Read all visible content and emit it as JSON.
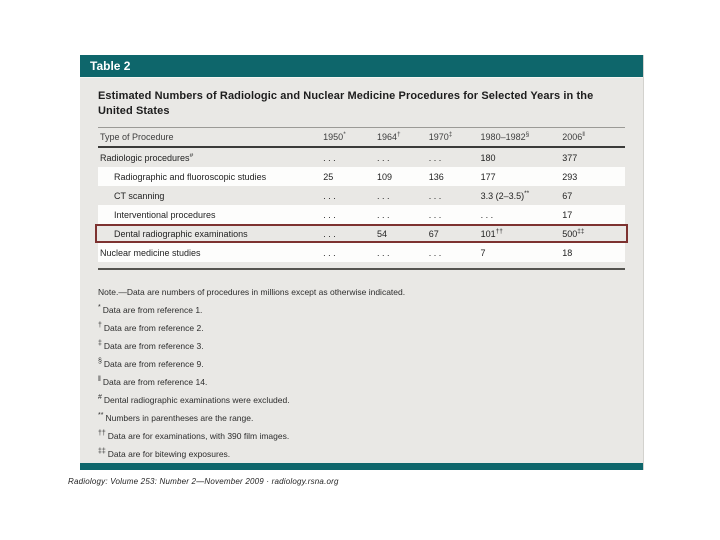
{
  "banner": {
    "label": "Table 2"
  },
  "title": "Estimated Numbers of Radiologic and Nuclear Medicine Procedures for Selected Years in the United States",
  "table": {
    "header": {
      "procedure": "Type of Procedure",
      "years": [
        {
          "label": "1950",
          "sup": "*"
        },
        {
          "label": "1964",
          "sup": "†"
        },
        {
          "label": "1970",
          "sup": "‡"
        },
        {
          "label": "1980–1982",
          "sup": "§"
        },
        {
          "label": "2006",
          "sup": "‖"
        }
      ]
    },
    "rows": [
      {
        "name": "Radiologic procedures",
        "sup": "#",
        "cells": [
          {
            "v": ". . .",
            "s": ""
          },
          {
            "v": ". . .",
            "s": ""
          },
          {
            "v": ". . .",
            "s": ""
          },
          {
            "v": "180",
            "s": ""
          },
          {
            "v": "377",
            "s": ""
          }
        ]
      },
      {
        "name": "Radiographic and fluoroscopic studies",
        "sup": "",
        "cells": [
          {
            "v": "25",
            "s": ""
          },
          {
            "v": "109",
            "s": ""
          },
          {
            "v": "136",
            "s": ""
          },
          {
            "v": "177",
            "s": ""
          },
          {
            "v": "293",
            "s": ""
          }
        ]
      },
      {
        "name": "CT scanning",
        "sup": "",
        "cells": [
          {
            "v": ". . .",
            "s": ""
          },
          {
            "v": ". . .",
            "s": ""
          },
          {
            "v": ". . .",
            "s": ""
          },
          {
            "v": "3.3 (2–3.5)",
            "s": "**"
          },
          {
            "v": "67",
            "s": ""
          }
        ]
      },
      {
        "name": "Interventional procedures",
        "sup": "",
        "cells": [
          {
            "v": ". . .",
            "s": ""
          },
          {
            "v": ". . .",
            "s": ""
          },
          {
            "v": ". . .",
            "s": ""
          },
          {
            "v": ". . .",
            "s": ""
          },
          {
            "v": "17",
            "s": ""
          }
        ]
      },
      {
        "name": "Dental radiographic examinations",
        "sup": "",
        "cells": [
          {
            "v": ". . .",
            "s": ""
          },
          {
            "v": "54",
            "s": ""
          },
          {
            "v": "67",
            "s": ""
          },
          {
            "v": "101",
            "s": "††"
          },
          {
            "v": "500",
            "s": "‡‡"
          }
        ]
      },
      {
        "name": "Nuclear medicine studies",
        "sup": "",
        "cells": [
          {
            "v": ". . .",
            "s": ""
          },
          {
            "v": ". . .",
            "s": ""
          },
          {
            "v": ". . .",
            "s": ""
          },
          {
            "v": "7",
            "s": ""
          },
          {
            "v": "18",
            "s": ""
          }
        ]
      }
    ]
  },
  "footnotes": {
    "note": "Note.—Data are numbers of procedures in millions except as otherwise indicated.",
    "items": [
      {
        "sym": "*",
        "text": "Data are from reference 1."
      },
      {
        "sym": "†",
        "text": "Data are from reference 2."
      },
      {
        "sym": "‡",
        "text": "Data are from reference 3."
      },
      {
        "sym": "§",
        "text": "Data are from reference 9."
      },
      {
        "sym": "‖",
        "text": "Data are from reference 14."
      },
      {
        "sym": "#",
        "text": "Dental radiographic examinations were excluded."
      },
      {
        "sym": "**",
        "text": "Numbers in parentheses are the range."
      },
      {
        "sym": "††",
        "text": "Data are for examinations, with 390 film images."
      },
      {
        "sym": "‡‡",
        "text": "Data are for bitewing exposures."
      }
    ]
  },
  "caption": "Radiology: Volume 253: Number 2—November 2009 · radiology.rsna.org",
  "colors": {
    "teal": "#0e666b",
    "maroon": "#7d3230",
    "card_bg": "#e9e8e5",
    "row_white": "#fdfdfc"
  }
}
